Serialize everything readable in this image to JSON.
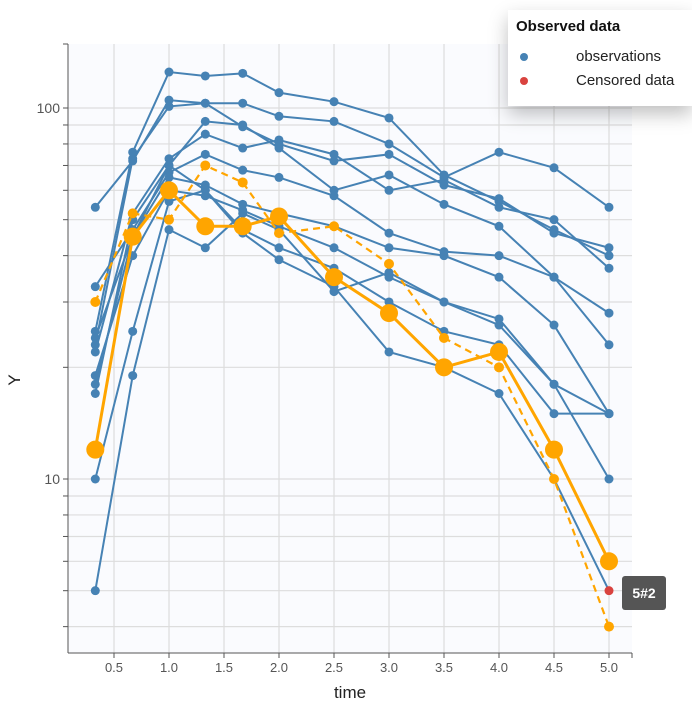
{
  "chart_data": {
    "type": "line",
    "xlabel": "time",
    "ylabel": "Y",
    "y_scale": "log",
    "xlim": [
      0.05,
      5.2
    ],
    "ylim": [
      3.4,
      150
    ],
    "x_ticks": [
      "0.5",
      "1.0",
      "1.5",
      "2.0",
      "2.5",
      "3.0",
      "3.5",
      "4.0",
      "4.5",
      "5.0"
    ],
    "y_ticks": [
      "10",
      "100"
    ],
    "grid": true,
    "x": [
      0.33,
      0.67,
      1.0,
      1.33,
      1.67,
      2.0,
      2.5,
      3.0,
      3.5,
      4.0,
      4.5,
      5.0
    ],
    "observations": [
      [
        25,
        76,
        125,
        122,
        124,
        110,
        104,
        94,
        66,
        56,
        47,
        40
      ],
      [
        54,
        72,
        105,
        103,
        103,
        95,
        92,
        80,
        65,
        76,
        69,
        54
      ],
      [
        23,
        73,
        101,
        103,
        89,
        80,
        72,
        75,
        62,
        57,
        46,
        42
      ],
      [
        22,
        52,
        73,
        85,
        78,
        82,
        75,
        60,
        64,
        54,
        50,
        37
      ],
      [
        17,
        50,
        70,
        92,
        90,
        78,
        60,
        66,
        55,
        48,
        35,
        28
      ],
      [
        33,
        47,
        67,
        75,
        68,
        65,
        58,
        46,
        41,
        40,
        35,
        23
      ],
      [
        24,
        45,
        65,
        62,
        55,
        52,
        48,
        42,
        40,
        35,
        26,
        15
      ],
      [
        19,
        40,
        60,
        58,
        53,
        48,
        42,
        35,
        30,
        27,
        18,
        10
      ],
      [
        5,
        19,
        47,
        42,
        52,
        47,
        32,
        36,
        30,
        26,
        18,
        15
      ],
      [
        10,
        25,
        56,
        60,
        46,
        39,
        33,
        22,
        20,
        17,
        10,
        5
      ],
      [
        18,
        45,
        70,
        60,
        47,
        42,
        37,
        30,
        25,
        23,
        15,
        15
      ]
    ],
    "censored": [
      {
        "x": 5.0,
        "y": 5
      }
    ],
    "mean_line": [
      12,
      45,
      60,
      48,
      48,
      51,
      35,
      28,
      20,
      22,
      12,
      6
    ],
    "median_line": [
      30,
      52,
      50,
      70,
      63,
      46,
      48,
      38,
      24,
      20,
      10,
      4
    ],
    "colors": {
      "observations": "#4682b4",
      "censored": "#d9433f",
      "mean": "#ffa500",
      "grid": "#dddddd",
      "plot_bg": "#fafbfe"
    }
  },
  "legend": {
    "title": "Observed data",
    "items": [
      {
        "label": "observations",
        "color": "#4682b4"
      },
      {
        "label": "Censored data",
        "color": "#d9433f"
      }
    ]
  },
  "tooltip": {
    "text": "5#2"
  }
}
